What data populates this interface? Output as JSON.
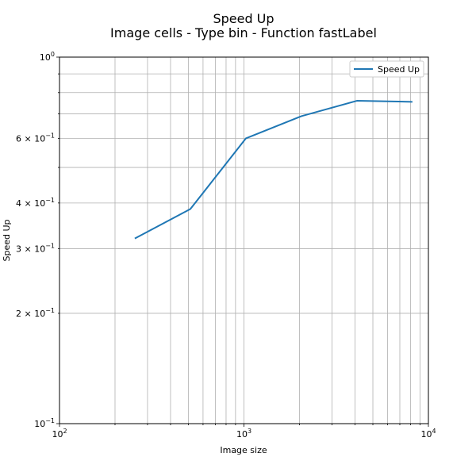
{
  "chart_data": {
    "type": "line",
    "title": "Speed Up",
    "subtitle": "Image cells - Type bin - Function fastLabel",
    "xlabel": "Image size",
    "ylabel": "Speed Up",
    "xscale": "log",
    "yscale": "log",
    "xlim": [
      100,
      10000
    ],
    "ylim": [
      0.1,
      1.0
    ],
    "grid": "both-major-minor",
    "legend_position": "top-right",
    "x_ticks": [
      {
        "base": "10",
        "exp": "2"
      },
      {
        "base": "10",
        "exp": "3"
      },
      {
        "base": "10",
        "exp": "4"
      }
    ],
    "y_ticks": [
      {
        "value": 0.1,
        "base": "10",
        "exp": "−1"
      },
      {
        "value": 0.2,
        "base": "2 × 10",
        "exp": "−1"
      },
      {
        "value": 0.3,
        "base": "3 × 10",
        "exp": "−1"
      },
      {
        "value": 0.4,
        "base": "4 × 10",
        "exp": "−1"
      },
      {
        "value": 0.6,
        "base": "6 × 10",
        "exp": "−1"
      },
      {
        "value": 1.0,
        "base": "10",
        "exp": "0"
      }
    ],
    "series": [
      {
        "name": "Speed Up",
        "color": "#1f77b4",
        "x": [
          256,
          512,
          1024,
          2048,
          4096,
          8192
        ],
        "y": [
          0.32,
          0.385,
          0.6,
          0.69,
          0.76,
          0.755
        ]
      }
    ]
  }
}
